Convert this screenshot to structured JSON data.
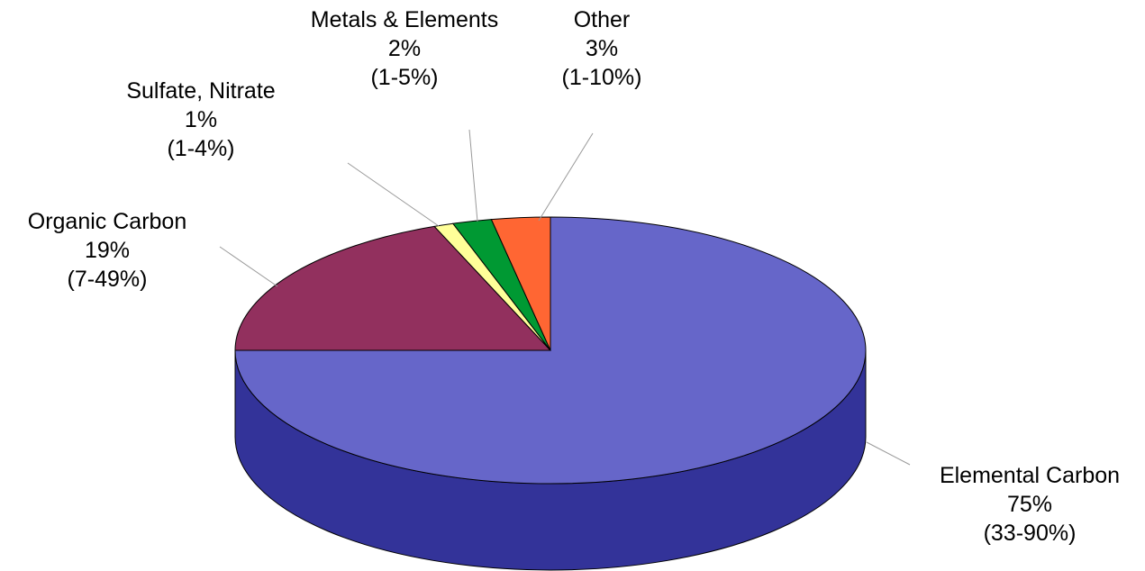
{
  "chart_data": {
    "type": "pie",
    "title": "",
    "slices": [
      {
        "name": "Elemental Carbon",
        "value": 75,
        "value_label": "75%",
        "range": "(33-90%)",
        "color": "#6666C9",
        "side_color": "#333399"
      },
      {
        "name": "Organic Carbon",
        "value": 19,
        "value_label": "19%",
        "range": "(7-49%)",
        "color": "#92305E",
        "side_color": "#5E1E3D"
      },
      {
        "name": "Sulfate, Nitrate",
        "value": 1,
        "value_label": "1%",
        "range": "(1-4%)",
        "color": "#FFFF99",
        "side_color": "#CCCC66"
      },
      {
        "name": "Metals & Elements",
        "value": 2,
        "value_label": "2%",
        "range": "(1-5%)",
        "color": "#009933",
        "side_color": "#006622"
      },
      {
        "name": "Other",
        "value": 3,
        "value_label": "3%",
        "range": "(1-10%)",
        "color": "#FF6633",
        "side_color": "#CC4411"
      }
    ],
    "style": "3d"
  }
}
